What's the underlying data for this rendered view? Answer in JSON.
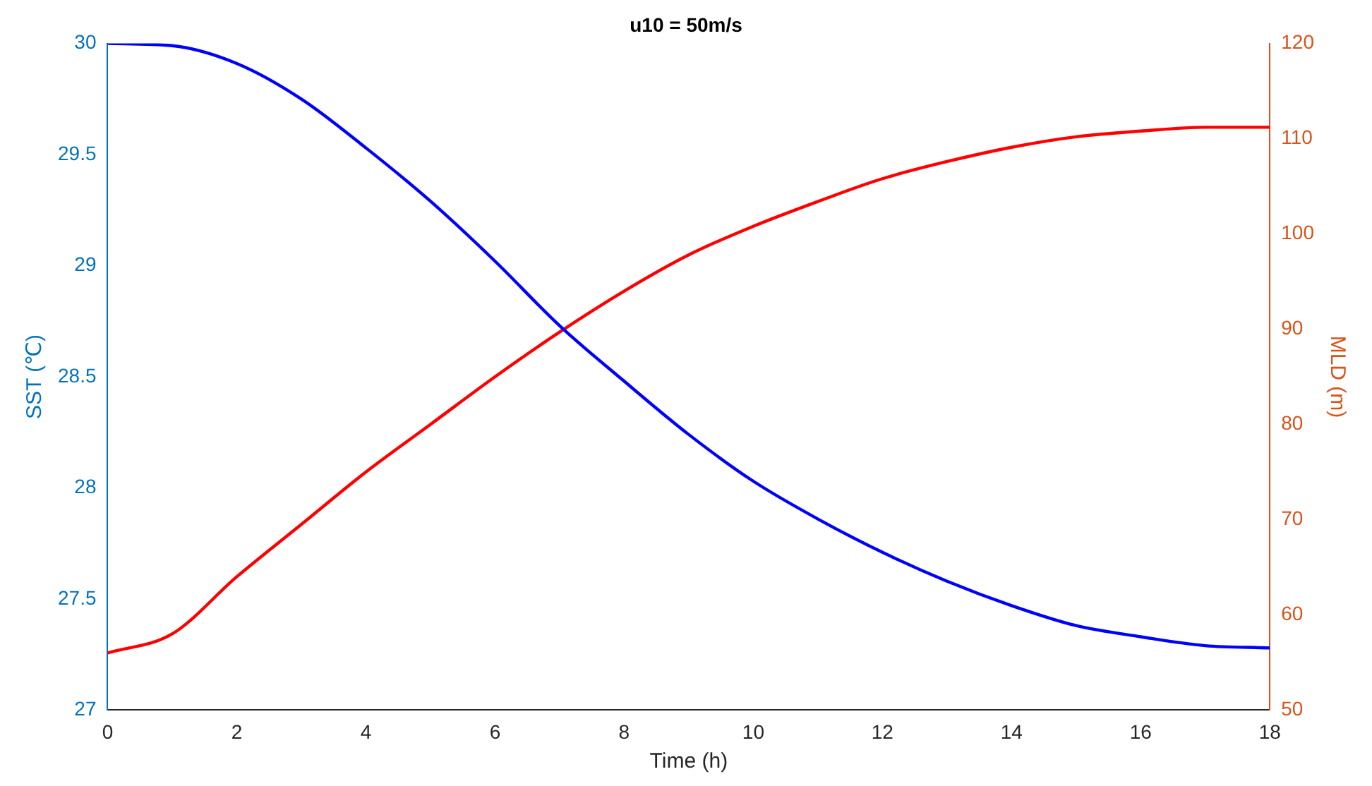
{
  "chart_data": {
    "type": "line",
    "title": "u10 = 50m/s",
    "xlabel": "Time (h)",
    "ylabel": "SST (℃)",
    "y2label": "MLD (m)",
    "xlim": [
      0,
      18
    ],
    "xticks": [
      0,
      2,
      4,
      6,
      8,
      10,
      12,
      14,
      16,
      18
    ],
    "ylim": [
      27,
      30
    ],
    "yticks": [
      27,
      27.5,
      28,
      28.5,
      29,
      29.5,
      30
    ],
    "y2lim": [
      50,
      120
    ],
    "y2ticks": [
      50,
      60,
      70,
      80,
      90,
      100,
      110,
      120
    ],
    "grid": false,
    "legend": false,
    "marker": "none",
    "line_style": "solid",
    "series": [
      {
        "color": "#0000ff",
        "x": [
          0,
          1,
          2,
          3,
          4,
          5,
          6,
          7,
          8,
          9,
          10,
          11,
          12,
          13,
          14,
          15,
          16,
          17,
          18
        ],
        "values": [
          30,
          29.99,
          29.91,
          29.75,
          29.53,
          29.29,
          29.02,
          28.73,
          28.48,
          28.24,
          28.03,
          27.86,
          27.71,
          27.58,
          27.47,
          27.38,
          27.33,
          27.29,
          27.28
        ]
      },
      {
        "color": "#ff0000",
        "axis": "y2",
        "x": [
          0,
          1,
          2,
          3,
          4,
          5,
          6,
          7,
          8,
          9,
          10,
          11,
          12,
          13,
          14,
          15,
          16,
          17,
          18
        ],
        "values": [
          56,
          58,
          64,
          69.5,
          75,
          80,
          85,
          89.7,
          94,
          97.8,
          100.8,
          103.4,
          105.8,
          107.6,
          109.1,
          110.2,
          110.8,
          111.2,
          111.2
        ]
      }
    ]
  }
}
